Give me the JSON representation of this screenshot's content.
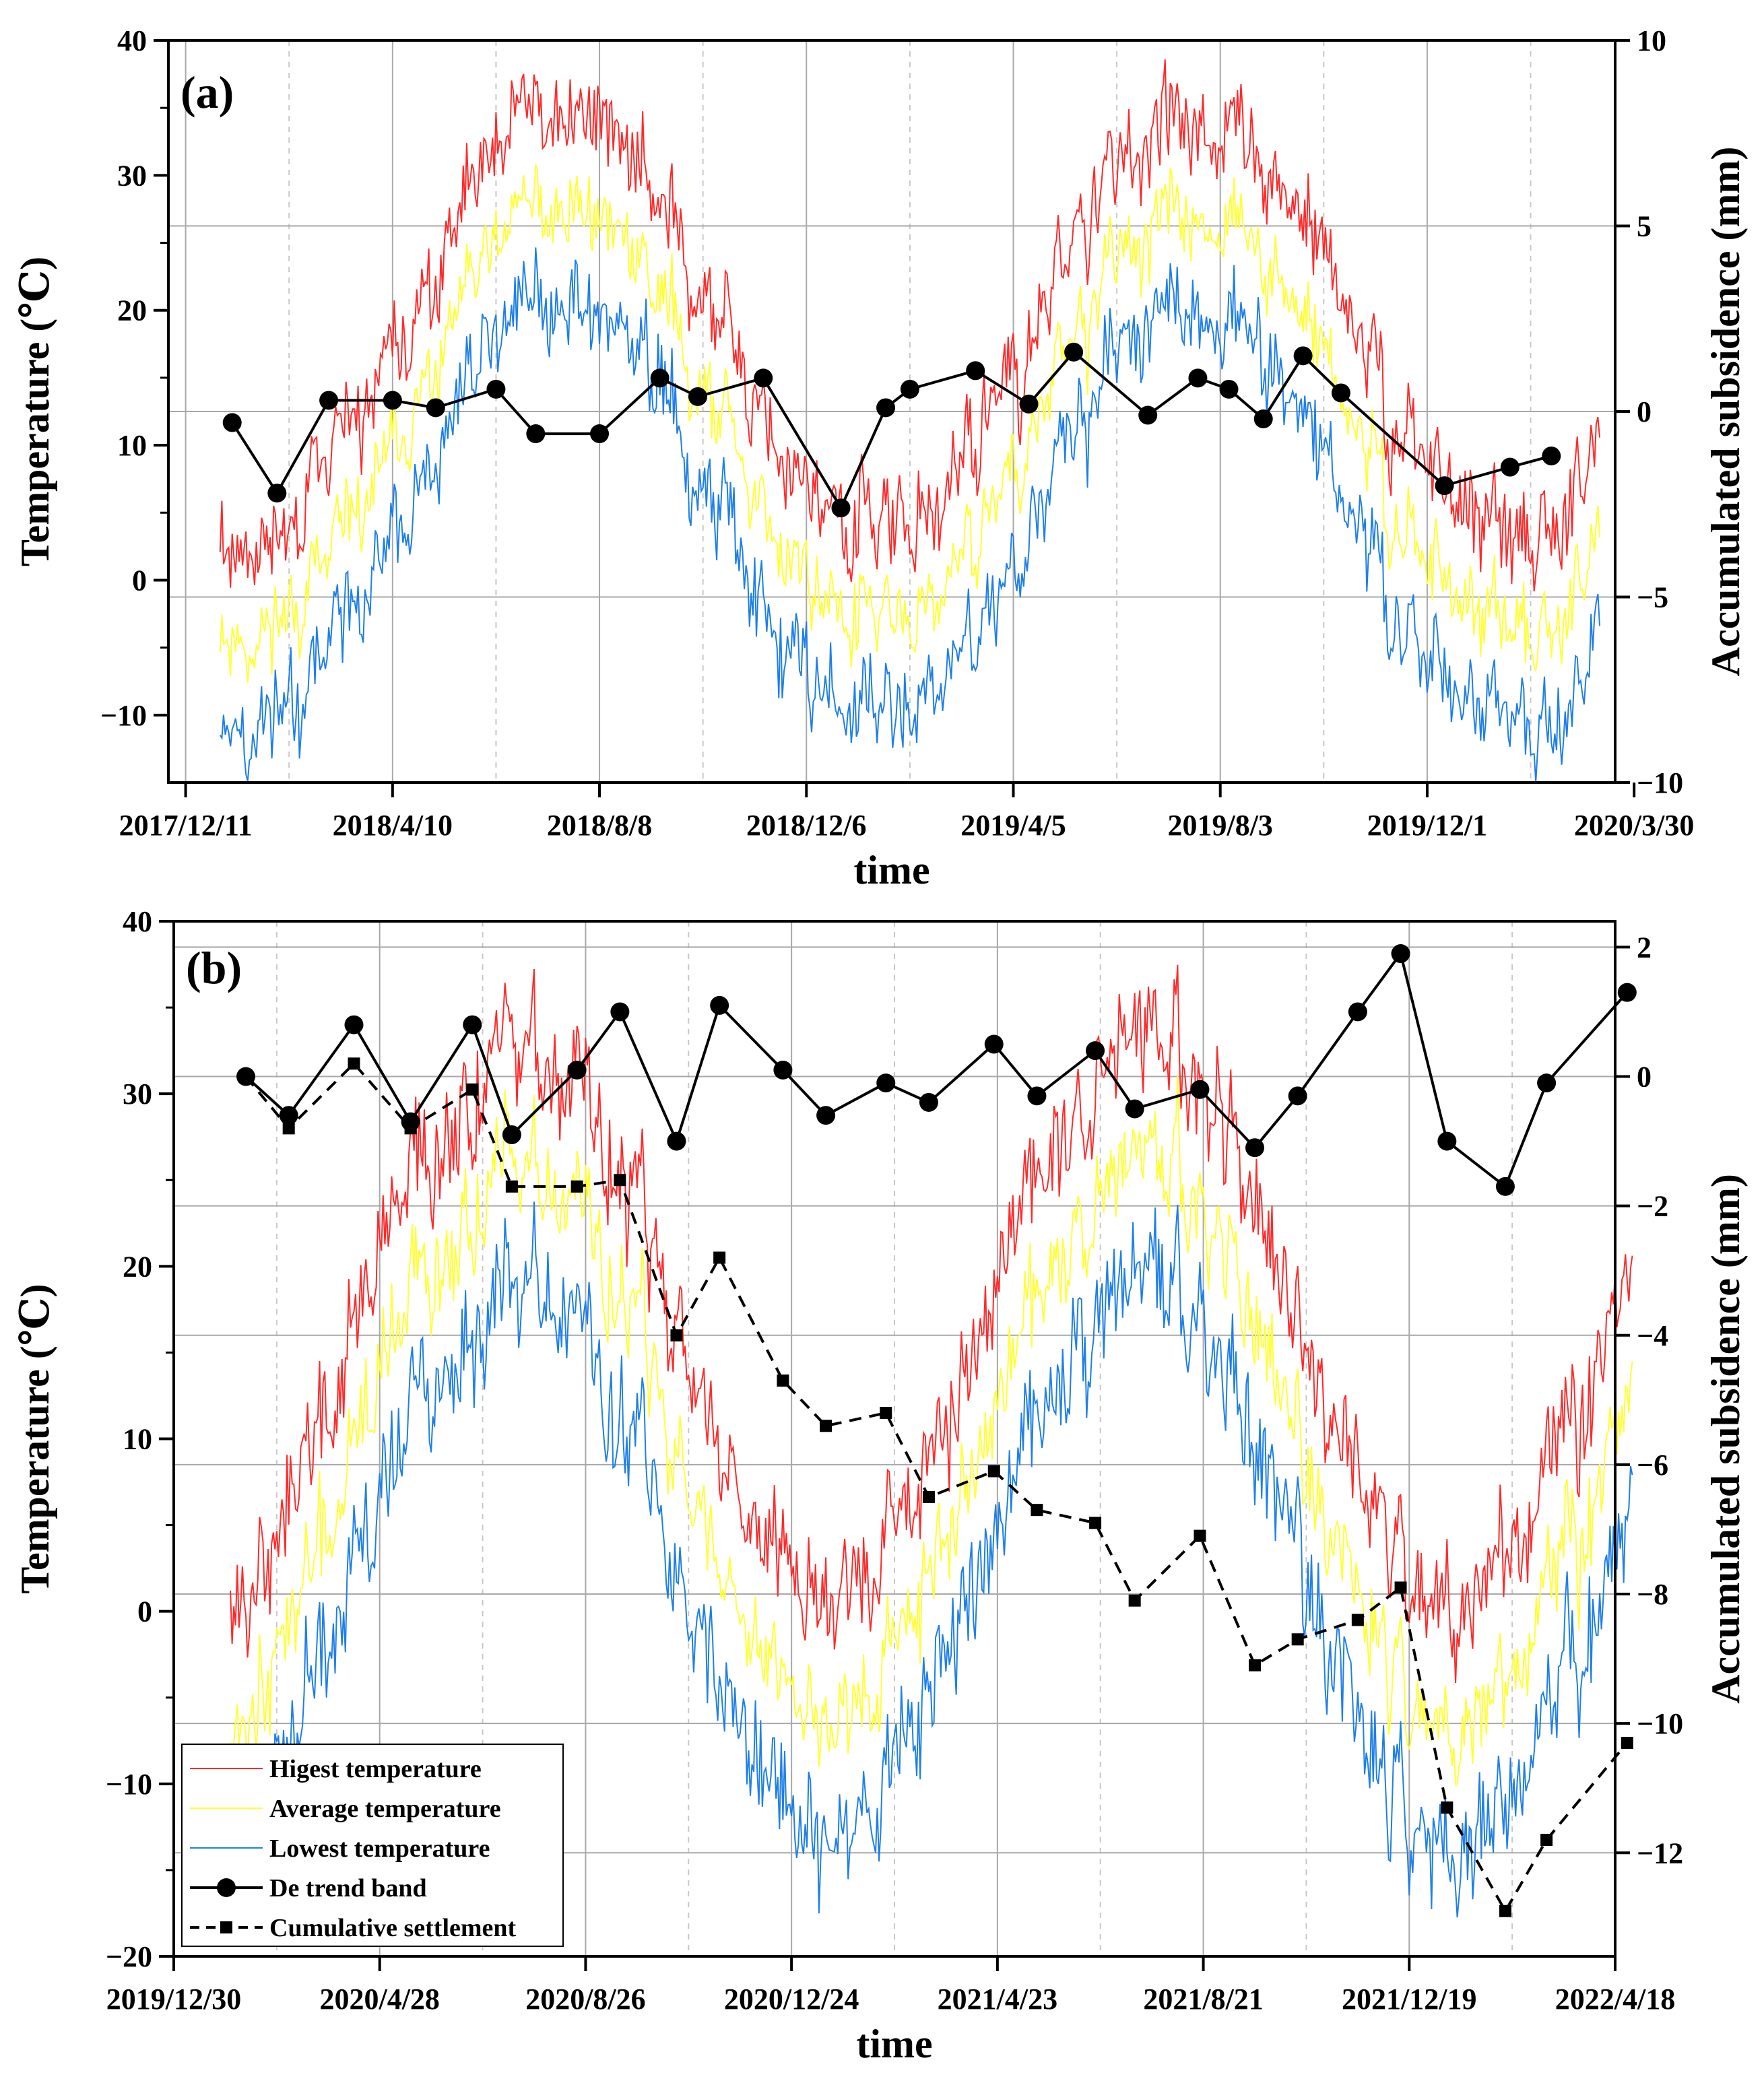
{
  "chart_data": [
    {
      "type": "line",
      "panel_label": "(a)",
      "xlabel": "time",
      "ylabel_left": "Temperature (℃)",
      "ylabel_right": "Accumulated subsidence (mm)",
      "ylim_left": [
        -15,
        40
      ],
      "ylim_right": [
        -10,
        10
      ],
      "yticks_left": [
        -10,
        0,
        10,
        20,
        30,
        40
      ],
      "yticks_right": [
        -10,
        -5,
        0,
        5,
        10
      ],
      "ytick_labels_left": [
        "−10",
        "0",
        "10",
        "20",
        "30",
        "40"
      ],
      "ytick_labels_right": [
        "−10",
        "−5",
        "0",
        "5",
        "10"
      ],
      "xrange_days": [
        -10,
        829
      ],
      "x_ticks": [
        {
          "day": 0,
          "label": "2017/12/11"
        },
        {
          "day": 120,
          "label": "2018/4/10"
        },
        {
          "day": 240,
          "label": "2018/8/8"
        },
        {
          "day": 360,
          "label": "2018/12/6"
        },
        {
          "day": 480,
          "label": "2019/4/5"
        },
        {
          "day": 600,
          "label": "2019/8/3"
        },
        {
          "day": 720,
          "label": "2019/12/1"
        },
        {
          "day": 840,
          "label": "2020/3/30"
        }
      ],
      "temperature": {
        "start_day": 20,
        "end_day": 820,
        "mean_base": 12,
        "amplitude": 15.5,
        "peak_day": 220,
        "high_offset": 6,
        "low_offset": -6,
        "noise": 3
      },
      "series": [
        {
          "name": "De trend band",
          "days": [
            27,
            53,
            83,
            120,
            145,
            180,
            203,
            240,
            275,
            297,
            335,
            380,
            406,
            420,
            458,
            489,
            515,
            558,
            587,
            605,
            625,
            648,
            670,
            730,
            768,
            792
          ],
          "values": [
            -0.3,
            -2.2,
            0.3,
            0.3,
            0.1,
            0.6,
            -0.6,
            -0.6,
            0.9,
            0.4,
            0.9,
            -2.6,
            0.1,
            0.6,
            1.1,
            0.2,
            1.6,
            -0.1,
            0.9,
            0.6,
            -0.2,
            1.5,
            0.5,
            -2.0,
            -1.5,
            -1.2
          ]
        }
      ]
    },
    {
      "type": "line",
      "panel_label": "(b)",
      "xlabel": "time",
      "ylabel_left": "Temperature (℃)",
      "ylabel_right": "Accumulated subsidence (mm)",
      "ylim_left": [
        -20,
        40
      ],
      "ylim_right": [
        -13.6,
        2.4
      ],
      "yticks_left": [
        -20,
        -10,
        0,
        10,
        20,
        30,
        40
      ],
      "yticks_right": [
        -12,
        -10,
        -8,
        -6,
        -4,
        -2,
        0,
        2
      ],
      "ytick_labels_left": [
        "−20",
        "−10",
        "0",
        "10",
        "20",
        "30",
        "40"
      ],
      "ytick_labels_right": [
        "−12",
        "−10",
        "−8",
        "−6",
        "−4",
        "−2",
        "0",
        "2"
      ],
      "xrange_days": [
        0,
        840
      ],
      "x_ticks": [
        {
          "day": 0,
          "label": "2019/12/30"
        },
        {
          "day": 120,
          "label": "2020/4/28"
        },
        {
          "day": 240,
          "label": "2020/8/26"
        },
        {
          "day": 360,
          "label": "2020/12/24"
        },
        {
          "day": 480,
          "label": "2021/4/23"
        },
        {
          "day": 600,
          "label": "2021/8/21"
        },
        {
          "day": 720,
          "label": "2021/12/19"
        },
        {
          "day": 840,
          "label": "2022/4/18"
        }
      ],
      "temperature": {
        "start_day": 33,
        "end_day": 850,
        "mean_base": 10,
        "amplitude": 16,
        "peak_day": 200,
        "high_offset": 6,
        "low_offset": -6,
        "noise": 3
      },
      "series": [
        {
          "name": "De trend band",
          "days": [
            42,
            67,
            105,
            138,
            174,
            197,
            235,
            260,
            293,
            318,
            355,
            380,
            415,
            440,
            478,
            503,
            537,
            560,
            598,
            630,
            655,
            690,
            715,
            742,
            776,
            800,
            847
          ],
          "values": [
            0,
            -0.6,
            0.8,
            -0.7,
            0.8,
            -0.9,
            0.1,
            1.0,
            -1.0,
            1.1,
            0.1,
            -0.6,
            -0.1,
            -0.4,
            0.5,
            -0.3,
            0.4,
            -0.5,
            -0.2,
            -1.1,
            -0.3,
            1.0,
            1.9,
            -1.0,
            -1.7,
            -0.1,
            1.3
          ]
        },
        {
          "name": "Cumulative settlement",
          "days": [
            42,
            67,
            105,
            138,
            174,
            197,
            235,
            260,
            293,
            318,
            355,
            380,
            415,
            440,
            478,
            503,
            537,
            560,
            598,
            630,
            655,
            690,
            715,
            742,
            776,
            800,
            847
          ],
          "values": [
            0,
            -0.8,
            0.2,
            -0.8,
            -0.2,
            -1.7,
            -1.7,
            -1.6,
            -4.0,
            -2.8,
            -4.7,
            -5.4,
            -5.2,
            -6.5,
            -6.1,
            -6.7,
            -6.9,
            -8.1,
            -7.1,
            -9.1,
            -8.7,
            -8.4,
            -7.9,
            -11.3,
            -12.9,
            -11.8,
            -10.3
          ]
        }
      ],
      "legend": {
        "placement": "bottom-left",
        "entries": [
          {
            "label": "Higest temperature",
            "color": "#ff2a2a"
          },
          {
            "label": "Average temperature",
            "color": "#ffff33"
          },
          {
            "label": "Lowest temperature",
            "color": "#1e7fe8"
          },
          {
            "label": "De trend band",
            "color": "#000000"
          },
          {
            "label": "Cumulative settlement",
            "color": "#000000"
          }
        ]
      }
    }
  ],
  "colors": {
    "high": "#ff2a2a",
    "avg": "#ffff33",
    "low": "#1e7fe8",
    "detrend": "#000000",
    "settlement": "#000000",
    "grid": "#a8a8a8"
  }
}
